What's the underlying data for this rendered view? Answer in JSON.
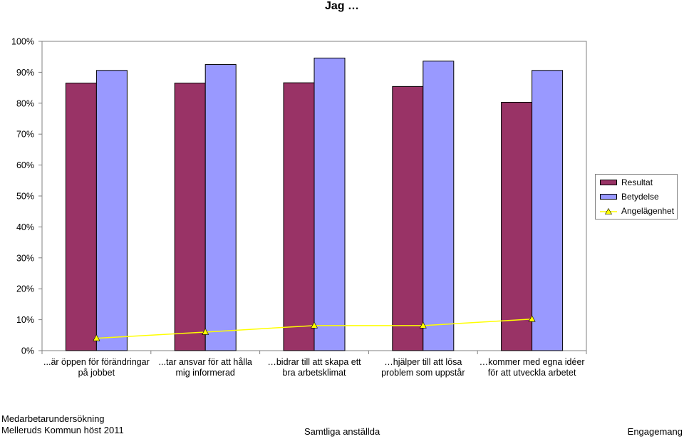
{
  "chart_data": {
    "type": "bar",
    "title": "Jag …",
    "categories": [
      "...är öppen för förändringar på jobbet",
      "...tar ansvar för att hålla mig informerad",
      "…bidrar till att skapa ett bra arbetsklimat",
      "…hjälper till att lösa problem som uppstår",
      "…kommer med egna idéer för att utveckla arbetet"
    ],
    "series": [
      {
        "name": "Resultat",
        "type": "bar",
        "color": "#993366",
        "values": [
          86.5,
          86.5,
          86.6,
          85.4,
          80.3
        ]
      },
      {
        "name": "Betydelse",
        "type": "bar",
        "color": "#9999ff",
        "values": [
          90.6,
          92.5,
          94.6,
          93.6,
          90.6
        ]
      },
      {
        "name": "Angelägenhet",
        "type": "line",
        "color": "#ffff00",
        "marker": "triangle",
        "values": [
          4.0,
          6.0,
          8.1,
          8.1,
          10.2
        ]
      }
    ],
    "ylim": [
      0,
      100
    ],
    "ytick_step": 10,
    "ytick_format": "percent",
    "grid": false,
    "legend_position": "right"
  },
  "footer": {
    "left_line1": "Medarbetarundersökning",
    "left_line2": "Melleruds Kommun höst 2011",
    "center": "Samtliga anställda",
    "right": "Engagemang"
  }
}
